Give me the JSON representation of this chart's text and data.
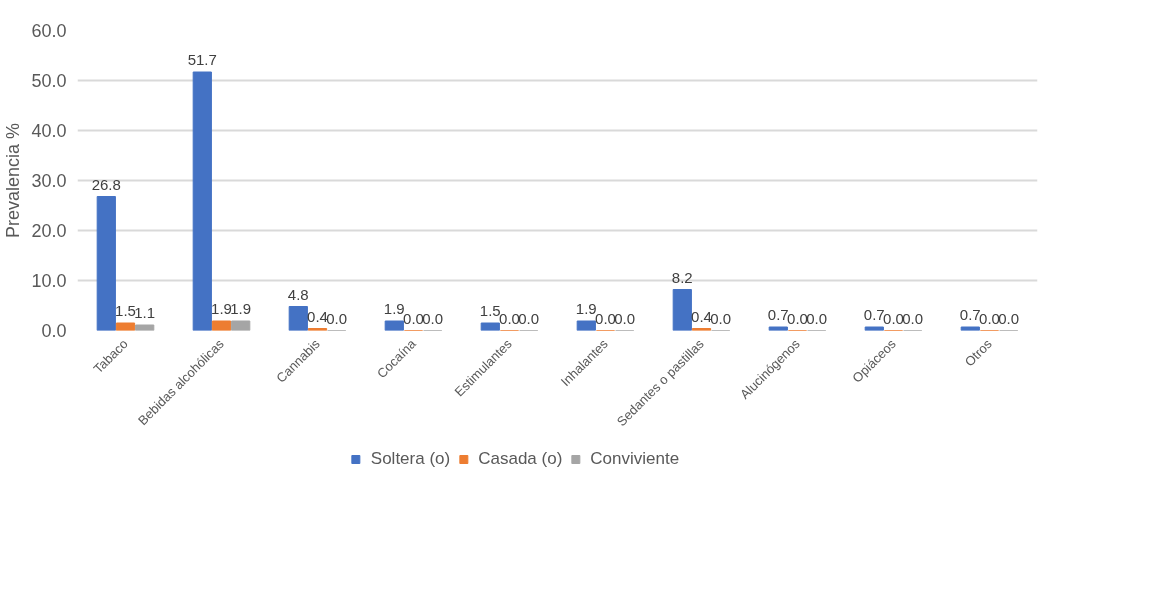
{
  "chart_data": {
    "type": "bar",
    "ylabel": "Prevalencia %",
    "categories": [
      "Tabaco",
      "Bebidas alcohólicas",
      "Cannabis",
      "Cocaína",
      "Estimulantes",
      "Inhalantes",
      "Sedantes o pastillas",
      "Alucinógenos",
      "Opiáceos",
      "Otros"
    ],
    "series": [
      {
        "name": "Soltera (o)",
        "color": "#4472c4",
        "values": [
          26.8,
          51.7,
          4.8,
          1.9,
          1.5,
          1.9,
          8.2,
          0.7,
          0.7,
          0.7
        ],
        "value_labels": [
          "26.8",
          "51.7",
          "4.8",
          "1.9",
          "1.5",
          "1.9",
          "8.2",
          "0.7",
          "0.7",
          "0.7"
        ]
      },
      {
        "name": "Casada (o)",
        "color": "#ed7d31",
        "values": [
          1.5,
          1.9,
          0.4,
          0.0,
          0.0,
          0.0,
          0.4,
          0.0,
          0.0,
          0.0
        ],
        "value_labels": [
          "1.5",
          "1.9",
          "0.4",
          "0.0",
          "0.0",
          "0.0",
          "0.4",
          "0.0",
          "0.0",
          "0.0"
        ]
      },
      {
        "name": "Conviviente",
        "color": "#a5a5a5",
        "values": [
          1.1,
          1.9,
          0.0,
          0.0,
          0.0,
          0.0,
          0.0,
          0.0,
          0.0,
          0.0
        ],
        "value_labels": [
          "1.1",
          "1.9",
          "0.0",
          "0.0",
          "0.0",
          "0.0",
          "0.0",
          "0.0",
          "0.0",
          "0.0"
        ]
      }
    ],
    "ylim": [
      0,
      60
    ],
    "yticks": [
      {
        "value": 0,
        "label": "0.0"
      },
      {
        "value": 10,
        "label": "10.0"
      },
      {
        "value": 20,
        "label": "20.0"
      },
      {
        "value": 30,
        "label": "30.0"
      },
      {
        "value": 40,
        "label": "40.0"
      },
      {
        "value": 50,
        "label": "50.0"
      },
      {
        "value": 60,
        "label": "60.0"
      }
    ],
    "grid": "y",
    "legend": "bottom"
  }
}
